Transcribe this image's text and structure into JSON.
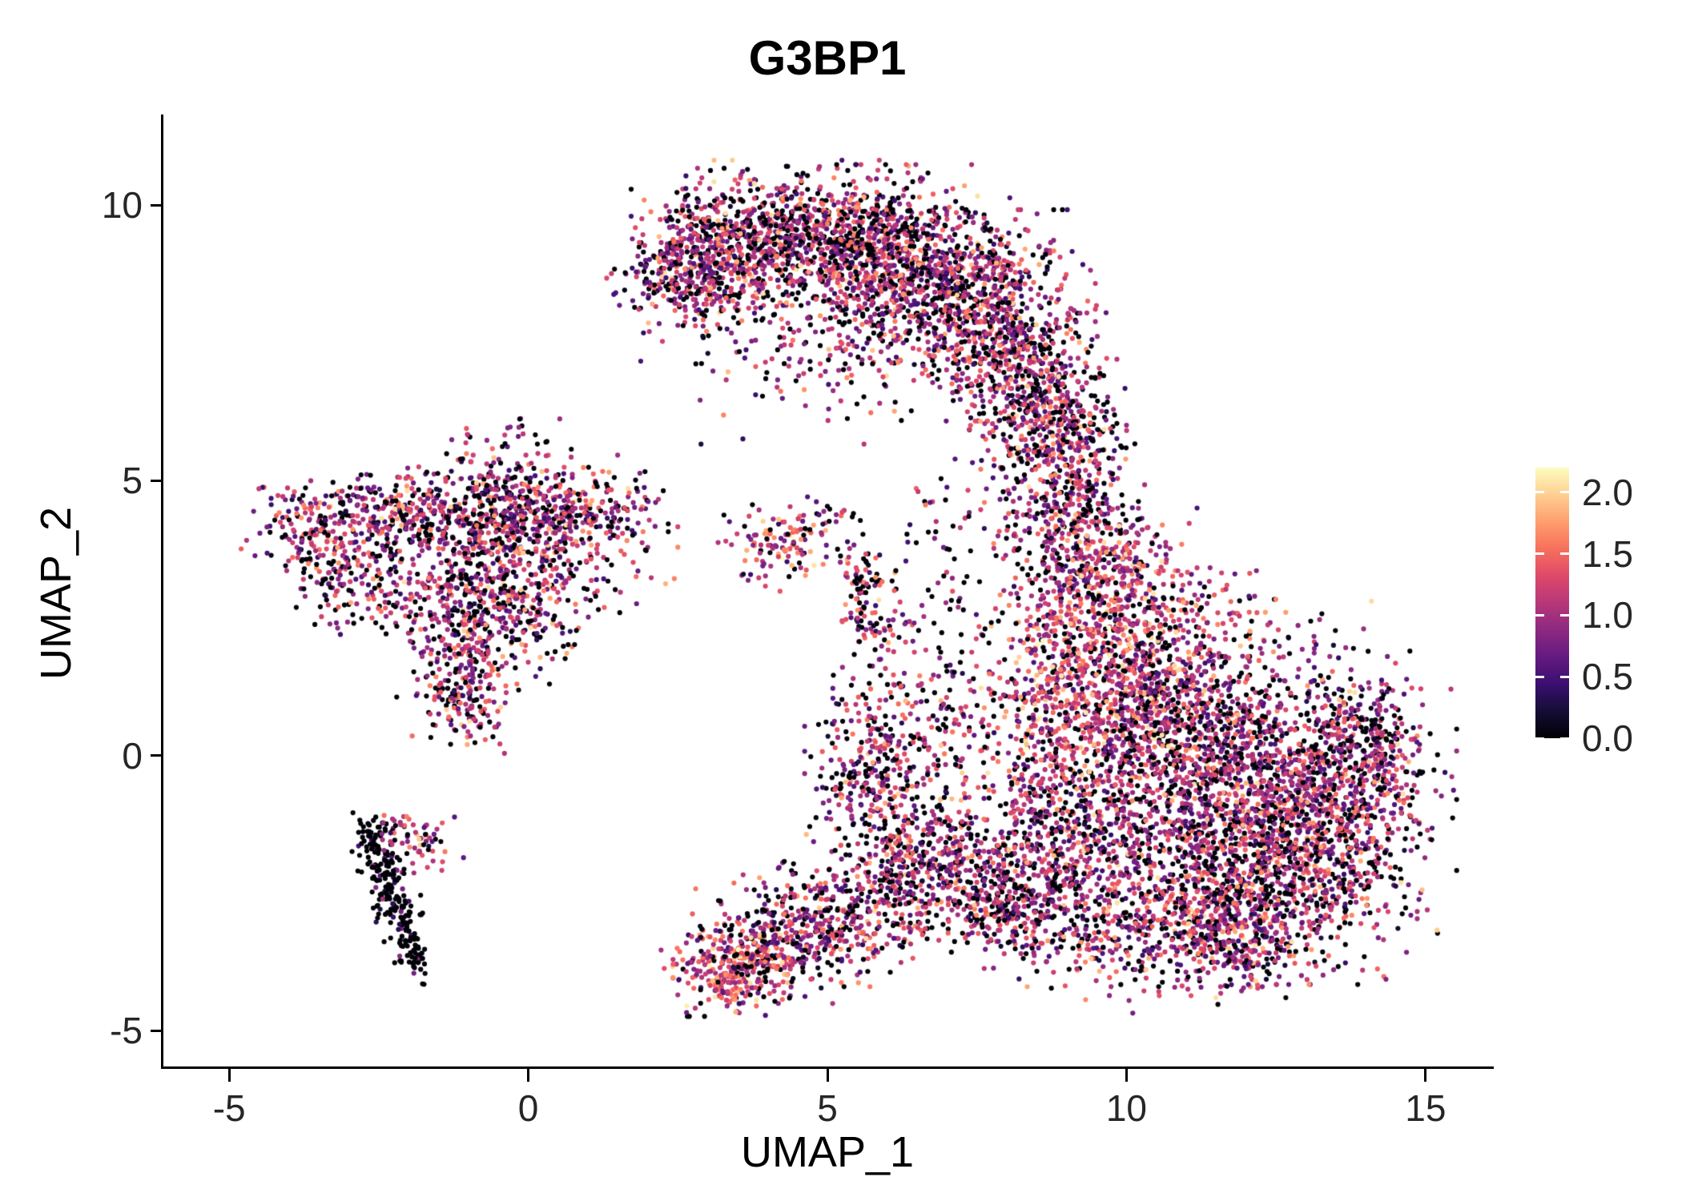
{
  "chart_data": {
    "type": "scatter",
    "title": "G3BP1",
    "xlabel": "UMAP_1",
    "ylabel": "UMAP_2",
    "xlim": [
      -6.1,
      16.1
    ],
    "ylim": [
      -5.65,
      11.65
    ],
    "grid": false,
    "background": "#ffffff",
    "axis_color": "#000000",
    "x_ticks": [
      {
        "value": -5,
        "label": "-5"
      },
      {
        "value": 0,
        "label": "0"
      },
      {
        "value": 5,
        "label": "5"
      },
      {
        "value": 10,
        "label": "10"
      },
      {
        "value": 15,
        "label": "15"
      }
    ],
    "y_ticks": [
      {
        "value": 10,
        "label": "10"
      },
      {
        "value": 5,
        "label": "5"
      },
      {
        "value": 0,
        "label": "0"
      },
      {
        "value": -5,
        "label": "-5"
      }
    ],
    "colorbar": {
      "position": "right",
      "domain": [
        0,
        2.2
      ],
      "ticks": [
        {
          "value": 0.0,
          "label": "0.0"
        },
        {
          "value": 0.5,
          "label": "0.5"
        },
        {
          "value": 1.0,
          "label": "1.0"
        },
        {
          "value": 1.5,
          "label": "1.5"
        },
        {
          "value": 2.0,
          "label": "2.0"
        }
      ]
    },
    "colormap": {
      "name": "magma",
      "stops": [
        "#000004",
        "#140e36",
        "#3b0f70",
        "#641a80",
        "#8c2981",
        "#b73779",
        "#de4968",
        "#f7705c",
        "#fe9f6d",
        "#fecf92",
        "#fcfdbf"
      ]
    },
    "point_radius_px": 3.1,
    "seed": 42,
    "expression_profiles": {
      "mixed": {
        "zero_frac": 0.28,
        "mean": 1.05,
        "sd": 0.42
      },
      "warm": {
        "zero_frac": 0.12,
        "mean": 1.3,
        "sd": 0.4
      },
      "dark": {
        "zero_frac": 0.8,
        "mean": 0.6,
        "sd": 0.35
      }
    },
    "clusters": [
      [
        2.6,
        8.9,
        0.55,
        0.45,
        250,
        "mixed"
      ],
      [
        3.4,
        9.3,
        0.7,
        0.5,
        350,
        "mixed"
      ],
      [
        4.5,
        9.5,
        0.8,
        0.55,
        450,
        "mixed"
      ],
      [
        5.7,
        9.3,
        0.8,
        0.6,
        500,
        "mixed"
      ],
      [
        6.8,
        8.8,
        0.8,
        0.7,
        500,
        "mixed"
      ],
      [
        7.8,
        8.0,
        0.7,
        0.8,
        450,
        "mixed"
      ],
      [
        8.4,
        6.9,
        0.6,
        0.8,
        350,
        "mixed"
      ],
      [
        8.8,
        6.0,
        0.5,
        0.6,
        200,
        "mixed"
      ],
      [
        5.0,
        8.3,
        1.3,
        0.7,
        150,
        "mixed"
      ],
      [
        6.2,
        7.6,
        1.0,
        0.7,
        150,
        "mixed"
      ],
      [
        4.6,
        7.1,
        0.9,
        0.6,
        60,
        "mixed"
      ],
      [
        3.0,
        8.3,
        0.5,
        0.4,
        80,
        "mixed"
      ],
      [
        9.2,
        5.3,
        0.45,
        0.8,
        160,
        "mixed"
      ],
      [
        9.0,
        4.3,
        0.5,
        0.6,
        180,
        "mixed"
      ],
      [
        8.3,
        4.8,
        0.5,
        0.5,
        40,
        "mixed"
      ],
      [
        7.0,
        4.2,
        0.5,
        0.6,
        30,
        "mixed"
      ],
      [
        9.5,
        3.4,
        0.7,
        0.7,
        280,
        "mixed"
      ],
      [
        9.9,
        2.3,
        0.9,
        0.8,
        420,
        "warm"
      ],
      [
        10.5,
        1.2,
        1.1,
        0.9,
        600,
        "mixed"
      ],
      [
        11.3,
        0.2,
        1.5,
        1.1,
        750,
        "mixed"
      ],
      [
        12.4,
        -0.6,
        1.3,
        1.0,
        700,
        "mixed"
      ],
      [
        11.5,
        -1.8,
        1.4,
        1.0,
        700,
        "mixed"
      ],
      [
        12.8,
        -2.0,
        1.0,
        0.9,
        450,
        "mixed"
      ],
      [
        13.7,
        -0.6,
        0.6,
        0.9,
        280,
        "mixed"
      ],
      [
        14.1,
        0.3,
        0.4,
        0.5,
        150,
        "mixed"
      ],
      [
        10.3,
        -3.0,
        1.0,
        0.7,
        300,
        "mixed"
      ],
      [
        11.5,
        -3.2,
        0.9,
        0.5,
        250,
        "mixed"
      ],
      [
        11.8,
        -3.6,
        0.5,
        0.3,
        80,
        "mixed"
      ],
      [
        9.2,
        -0.8,
        0.7,
        1.0,
        300,
        "mixed"
      ],
      [
        8.7,
        -2.0,
        0.7,
        0.8,
        250,
        "mixed"
      ],
      [
        9.0,
        1.0,
        0.6,
        0.8,
        250,
        "warm"
      ],
      [
        6.9,
        2.2,
        0.5,
        1.0,
        70,
        "mixed"
      ],
      [
        6.4,
        0.8,
        0.5,
        0.9,
        80,
        "mixed"
      ],
      [
        7.3,
        0.2,
        0.6,
        0.7,
        80,
        "mixed"
      ],
      [
        5.7,
        -0.1,
        0.45,
        0.65,
        220,
        "mixed"
      ],
      [
        6.2,
        -1.2,
        0.6,
        0.6,
        120,
        "mixed"
      ],
      [
        3.3,
        -3.9,
        0.45,
        0.35,
        260,
        "warm"
      ],
      [
        4.1,
        -3.5,
        0.7,
        0.45,
        280,
        "mixed"
      ],
      [
        5.1,
        -3.0,
        0.8,
        0.5,
        280,
        "mixed"
      ],
      [
        6.1,
        -2.4,
        0.8,
        0.55,
        240,
        "mixed"
      ],
      [
        7.0,
        -1.9,
        0.7,
        0.55,
        200,
        "mixed"
      ],
      [
        7.8,
        -2.4,
        0.6,
        0.5,
        150,
        "mixed"
      ],
      [
        8.0,
        -3.1,
        0.5,
        0.4,
        80,
        "mixed"
      ],
      [
        -3.6,
        4.2,
        0.5,
        0.45,
        170,
        "mixed"
      ],
      [
        -3.0,
        3.4,
        0.45,
        0.55,
        150,
        "mixed"
      ],
      [
        -2.5,
        4.4,
        0.4,
        0.3,
        80,
        "mixed"
      ],
      [
        -1.2,
        4.5,
        0.7,
        0.35,
        180,
        "mixed"
      ],
      [
        -0.2,
        4.5,
        0.9,
        0.4,
        250,
        "mixed"
      ],
      [
        0.9,
        4.4,
        0.6,
        0.35,
        150,
        "mixed"
      ],
      [
        0.1,
        3.6,
        1.0,
        0.6,
        300,
        "mixed"
      ],
      [
        -0.9,
        3.0,
        0.7,
        0.5,
        180,
        "mixed"
      ],
      [
        -0.2,
        2.5,
        0.6,
        0.5,
        150,
        "mixed"
      ],
      [
        -1.0,
        1.9,
        0.5,
        0.5,
        140,
        "mixed"
      ],
      [
        -1.1,
        1.0,
        0.35,
        0.4,
        130,
        "mixed"
      ],
      [
        -0.4,
        5.4,
        0.5,
        0.4,
        60,
        "mixed"
      ],
      [
        -0.1,
        5.9,
        0.15,
        0.15,
        8,
        "mixed"
      ],
      [
        -2.0,
        3.0,
        0.4,
        0.5,
        70,
        "mixed"
      ],
      [
        -1.8,
        4.1,
        0.4,
        0.4,
        70,
        "mixed"
      ],
      [
        -2.55,
        -1.6,
        0.18,
        0.25,
        60,
        "dark"
      ],
      [
        -2.4,
        -2.15,
        0.15,
        0.25,
        55,
        "dark"
      ],
      [
        -2.25,
        -2.7,
        0.15,
        0.25,
        50,
        "dark"
      ],
      [
        -2.05,
        -3.2,
        0.15,
        0.28,
        45,
        "dark"
      ],
      [
        -1.9,
        -3.7,
        0.13,
        0.22,
        35,
        "dark"
      ],
      [
        -1.75,
        -1.65,
        0.3,
        0.25,
        45,
        "mixed"
      ],
      [
        -2.3,
        -1.35,
        0.25,
        0.15,
        25,
        "mixed"
      ],
      [
        4.45,
        3.95,
        0.4,
        0.3,
        70,
        "warm"
      ],
      [
        4.0,
        3.6,
        0.5,
        0.4,
        40,
        "mixed"
      ],
      [
        5.0,
        4.35,
        0.3,
        0.25,
        25,
        "mixed"
      ],
      [
        5.62,
        2.95,
        0.22,
        0.5,
        90,
        "mixed"
      ],
      [
        5.9,
        2.2,
        0.3,
        0.3,
        25,
        "mixed"
      ]
    ]
  }
}
